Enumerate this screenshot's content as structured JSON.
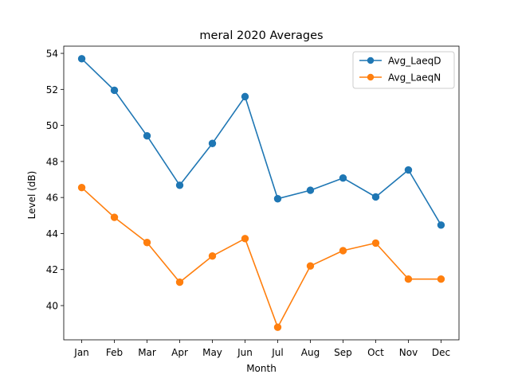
{
  "chart_data": {
    "type": "line",
    "title": "meral 2020 Averages",
    "xlabel": "Month",
    "ylabel": "Level (dB)",
    "categories": [
      "Jan",
      "Feb",
      "Mar",
      "Apr",
      "May",
      "Jun",
      "Jul",
      "Aug",
      "Sep",
      "Oct",
      "Nov",
      "Dec"
    ],
    "ylim": [
      38.1,
      54.4
    ],
    "yticks": [
      40,
      42,
      44,
      46,
      48,
      50,
      52,
      54
    ],
    "grid": false,
    "legend_position": "top-right",
    "series": [
      {
        "name": "Avg_LaeqD",
        "color": "#1f77b4",
        "marker": "circle",
        "values": [
          53.7,
          51.95,
          49.42,
          46.68,
          49.0,
          51.6,
          45.93,
          46.4,
          47.08,
          46.03,
          47.53,
          44.47
        ]
      },
      {
        "name": "Avg_LaeqN",
        "color": "#ff7f0e",
        "marker": "circle",
        "values": [
          46.55,
          44.9,
          43.5,
          41.3,
          42.75,
          43.72,
          38.8,
          42.2,
          43.05,
          43.47,
          41.47,
          41.47
        ]
      }
    ]
  }
}
